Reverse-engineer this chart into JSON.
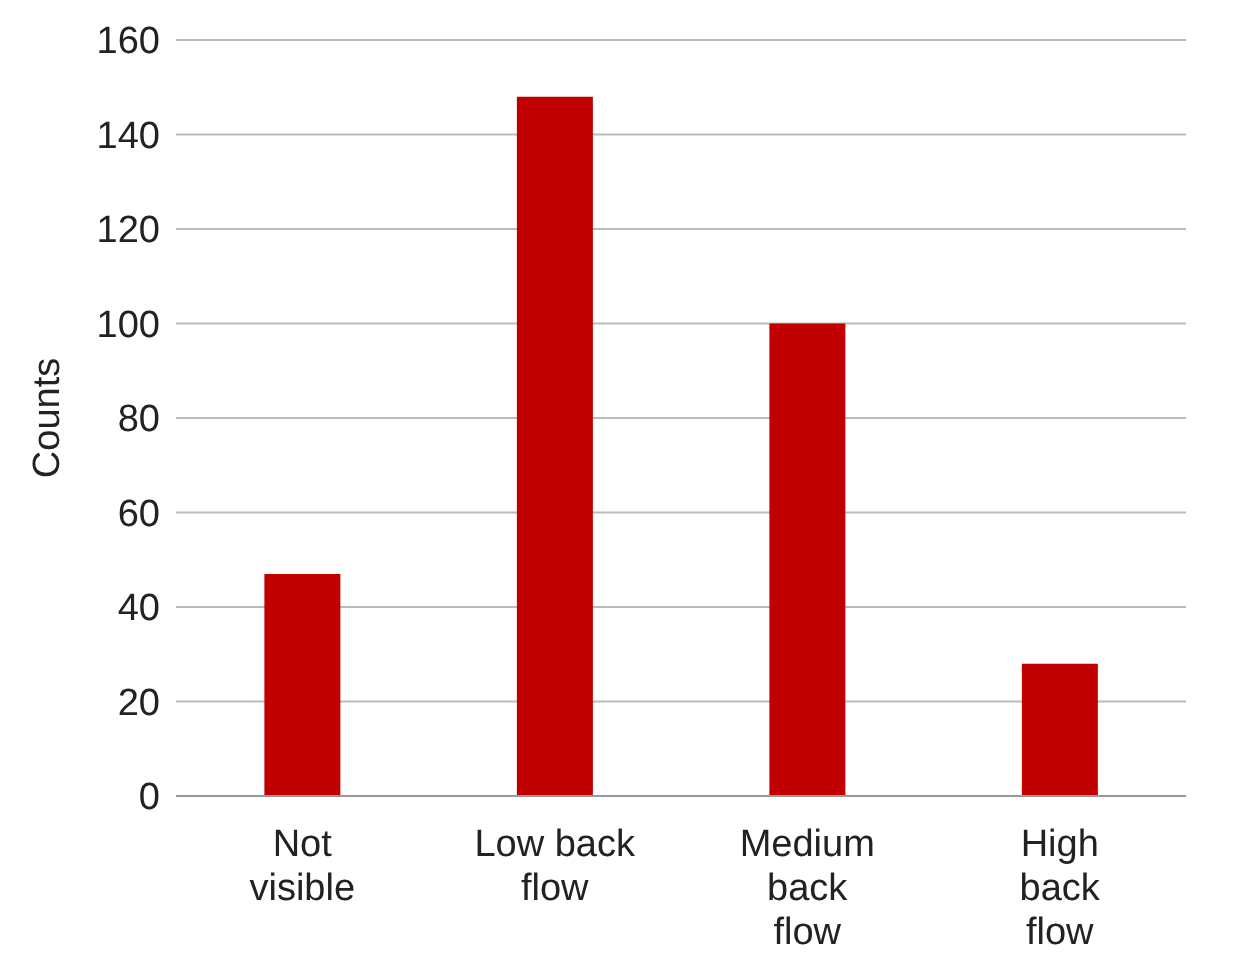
{
  "chart_data": {
    "type": "bar",
    "ylabel": "Counts",
    "categories": [
      "Not visible",
      "Low back flow",
      "Medium back flow",
      "High back flow"
    ],
    "values": [
      47,
      148,
      100,
      28
    ],
    "color": "#c00000",
    "ylim": [
      0,
      160
    ],
    "yticks": [
      0,
      20,
      40,
      60,
      80,
      100,
      120,
      140,
      160
    ],
    "grid": "y"
  }
}
